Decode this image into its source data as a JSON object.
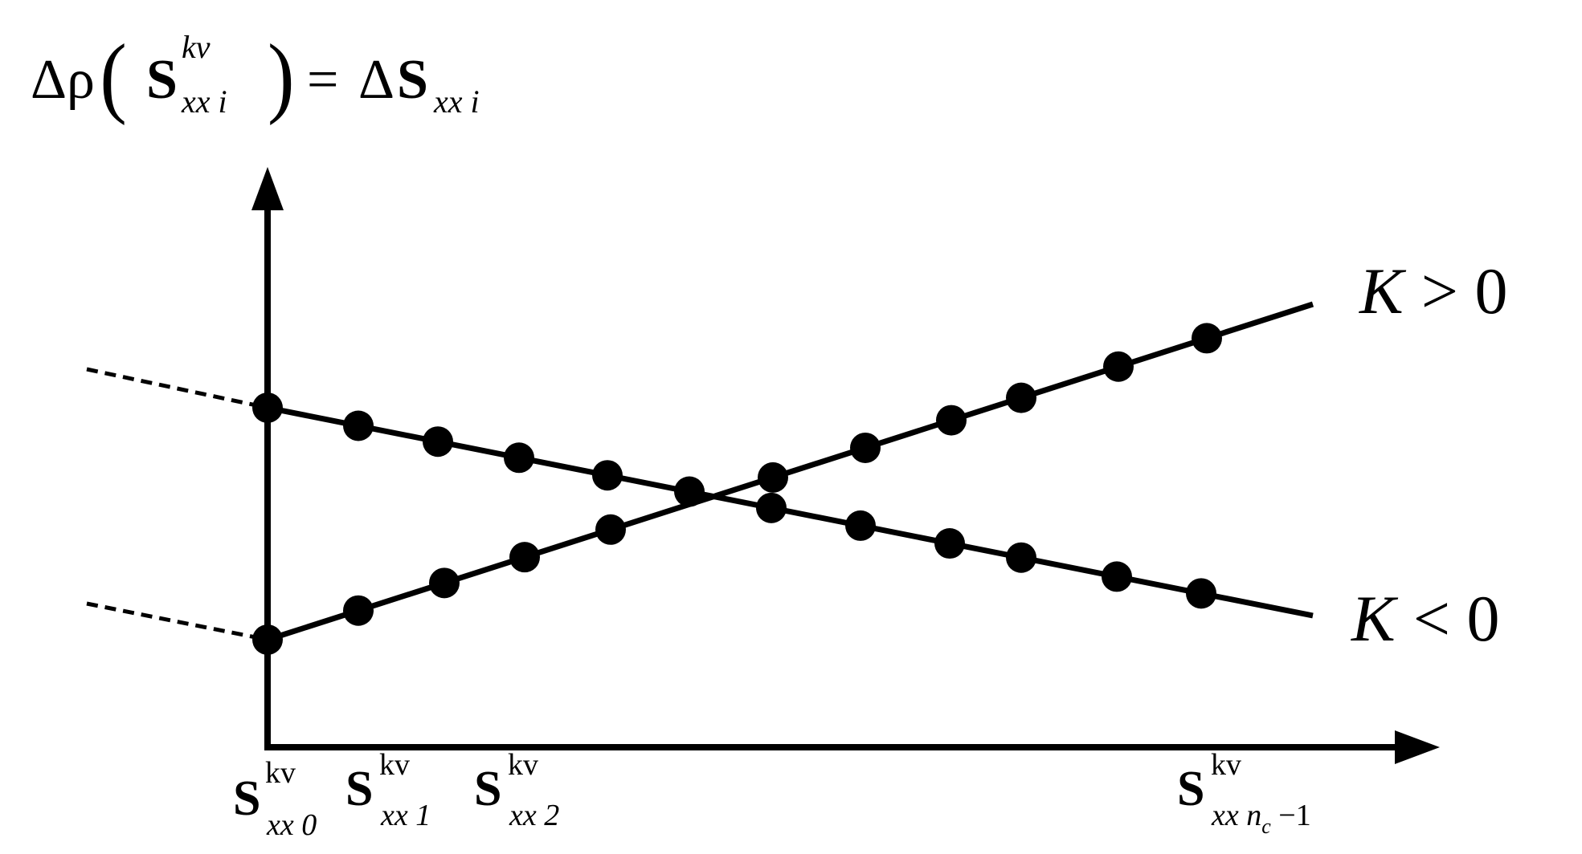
{
  "y_axis_label": {
    "prefix": "Δρ",
    "open_paren": "(",
    "base": "S",
    "superscript": "kv",
    "subscript": "xx i",
    "close_paren": ")",
    "equals": "=",
    "rhs_prefix": "Δ",
    "rhs_base": "S",
    "rhs_subscript": "xx i"
  },
  "lines": [
    {
      "label": "K > 0",
      "label_var": "K",
      "label_rel": "> 0",
      "slope_sign": "positive"
    },
    {
      "label": "K < 0",
      "label_var": "K",
      "label_rel": "< 0",
      "slope_sign": "negative"
    }
  ],
  "x_ticks": [
    {
      "base": "S",
      "superscript": "kv",
      "subscript": "xx 0"
    },
    {
      "base": "S",
      "superscript": "kv",
      "subscript": "xx 1"
    },
    {
      "base": "S",
      "superscript": "kv",
      "subscript": "xx 2"
    },
    {
      "base": "S",
      "superscript": "kv",
      "subscript_main": "xx n",
      "subscript_small": "c",
      "subscript_tail": " −1"
    }
  ],
  "colors": {
    "ink": "#000000",
    "background": "#ffffff"
  }
}
